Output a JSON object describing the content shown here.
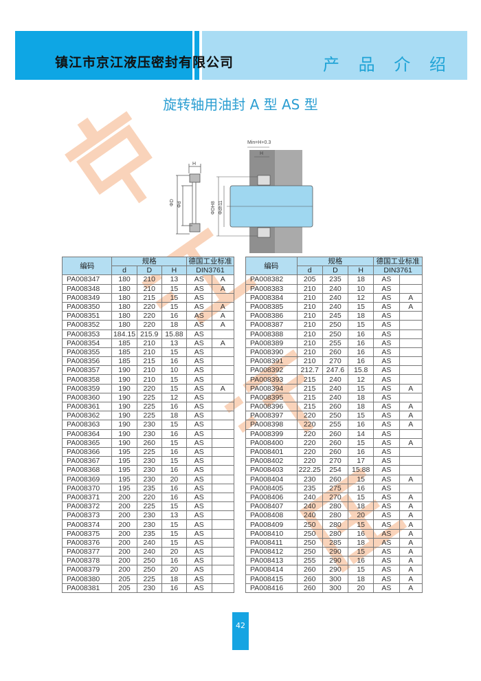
{
  "header": {
    "company": "镇江市京江液压密封有限公司",
    "section": "产 品 介 绍",
    "brand_color": "#0ea6e4"
  },
  "title": "旋转轴用油封 A 型   AS 型",
  "diagram": {
    "min_label": "Min=H+0.3",
    "h_label": "H",
    "D_label": "ΦD",
    "d_label": "Φd",
    "DH8_label": "ΦDH8",
    "dh11_label": "Φdh11"
  },
  "watermark": [
    "京",
    "江",
    "液",
    "压"
  ],
  "table": {
    "headers": {
      "code": "编码",
      "spec": "规格",
      "d": "d",
      "D": "D",
      "H": "H",
      "standard": "德国工业标准",
      "din": "DIN3761"
    },
    "left": [
      [
        "PA008347",
        "180",
        "210",
        "13",
        "AS",
        "A"
      ],
      [
        "PA008348",
        "180",
        "210",
        "15",
        "AS",
        "A"
      ],
      [
        "PA008349",
        "180",
        "215",
        "15",
        "AS",
        ""
      ],
      [
        "PA008350",
        "180",
        "220",
        "15",
        "AS",
        "A"
      ],
      [
        "PA008351",
        "180",
        "220",
        "16",
        "AS",
        "A"
      ],
      [
        "PA008352",
        "180",
        "220",
        "18",
        "AS",
        "A"
      ],
      [
        "PA008353",
        "184.15",
        "215.9",
        "15.88",
        "AS",
        ""
      ],
      [
        "PA008354",
        "185",
        "210",
        "13",
        "AS",
        "A"
      ],
      [
        "PA008355",
        "185",
        "210",
        "15",
        "AS",
        ""
      ],
      [
        "PA008356",
        "185",
        "215",
        "16",
        "AS",
        ""
      ],
      [
        "PA008357",
        "190",
        "210",
        "10",
        "AS",
        ""
      ],
      [
        "PA008358",
        "190",
        "210",
        "15",
        "AS",
        ""
      ],
      [
        "PA008359",
        "190",
        "220",
        "15",
        "AS",
        "A"
      ],
      [
        "PA008360",
        "190",
        "225",
        "12",
        "AS",
        ""
      ],
      [
        "PA008361",
        "190",
        "225",
        "16",
        "AS",
        ""
      ],
      [
        "PA008362",
        "190",
        "225",
        "18",
        "AS",
        ""
      ],
      [
        "PA008363",
        "190",
        "230",
        "15",
        "AS",
        ""
      ],
      [
        "PA008364",
        "190",
        "230",
        "16",
        "AS",
        ""
      ],
      [
        "PA008365",
        "190",
        "260",
        "15",
        "AS",
        ""
      ],
      [
        "PA008366",
        "195",
        "225",
        "16",
        "AS",
        ""
      ],
      [
        "PA008367",
        "195",
        "230",
        "15",
        "AS",
        ""
      ],
      [
        "PA008368",
        "195",
        "230",
        "16",
        "AS",
        ""
      ],
      [
        "PA008369",
        "195",
        "230",
        "20",
        "AS",
        ""
      ],
      [
        "PA008370",
        "195",
        "235",
        "16",
        "AS",
        ""
      ],
      [
        "PA008371",
        "200",
        "220",
        "16",
        "AS",
        ""
      ],
      [
        "PA008372",
        "200",
        "225",
        "15",
        "AS",
        ""
      ],
      [
        "PA008373",
        "200",
        "230",
        "13",
        "AS",
        ""
      ],
      [
        "PA008374",
        "200",
        "230",
        "15",
        "AS",
        ""
      ],
      [
        "PA008375",
        "200",
        "235",
        "15",
        "AS",
        ""
      ],
      [
        "PA008376",
        "200",
        "240",
        "15",
        "AS",
        ""
      ],
      [
        "PA008377",
        "200",
        "240",
        "20",
        "AS",
        ""
      ],
      [
        "PA008378",
        "200",
        "250",
        "16",
        "AS",
        ""
      ],
      [
        "PA008379",
        "200",
        "250",
        "20",
        "AS",
        ""
      ],
      [
        "PA008380",
        "205",
        "225",
        "18",
        "AS",
        ""
      ],
      [
        "PA008381",
        "205",
        "230",
        "16",
        "AS",
        ""
      ]
    ],
    "right": [
      [
        "PA008382",
        "205",
        "235",
        "18",
        "AS",
        ""
      ],
      [
        "PA008383",
        "210",
        "240",
        "10",
        "AS",
        ""
      ],
      [
        "PA008384",
        "210",
        "240",
        "12",
        "AS",
        "A"
      ],
      [
        "PA008385",
        "210",
        "240",
        "15",
        "AS",
        "A"
      ],
      [
        "PA008386",
        "210",
        "245",
        "18",
        "AS",
        ""
      ],
      [
        "PA008387",
        "210",
        "250",
        "15",
        "AS",
        ""
      ],
      [
        "PA008388",
        "210",
        "250",
        "16",
        "AS",
        ""
      ],
      [
        "PA008389",
        "210",
        "255",
        "16",
        "AS",
        ""
      ],
      [
        "PA008390",
        "210",
        "260",
        "16",
        "AS",
        ""
      ],
      [
        "PA008391",
        "210",
        "270",
        "16",
        "AS",
        ""
      ],
      [
        "PA008392",
        "212.7",
        "247.6",
        "15.8",
        "AS",
        ""
      ],
      [
        "PA008393",
        "215",
        "240",
        "12",
        "AS",
        ""
      ],
      [
        "PA008394",
        "215",
        "240",
        "15",
        "AS",
        "A"
      ],
      [
        "PA008395",
        "215",
        "240",
        "18",
        "AS",
        ""
      ],
      [
        "PA008396",
        "215",
        "260",
        "18",
        "AS",
        "A"
      ],
      [
        "PA008397",
        "220",
        "250",
        "15",
        "AS",
        "A"
      ],
      [
        "PA008398",
        "220",
        "255",
        "16",
        "AS",
        "A"
      ],
      [
        "PA008399",
        "220",
        "260",
        "14",
        "AS",
        ""
      ],
      [
        "PA008400",
        "220",
        "260",
        "15",
        "AS",
        "A"
      ],
      [
        "PA008401",
        "220",
        "260",
        "16",
        "AS",
        ""
      ],
      [
        "PA008402",
        "220",
        "270",
        "17",
        "AS",
        ""
      ],
      [
        "PA008403",
        "222.25",
        "254",
        "15.88",
        "AS",
        ""
      ],
      [
        "PA008404",
        "230",
        "260",
        "15",
        "AS",
        "A"
      ],
      [
        "PA008405",
        "235",
        "275",
        "16",
        "AS",
        ""
      ],
      [
        "PA008406",
        "240",
        "270",
        "15",
        "AS",
        "A"
      ],
      [
        "PA008407",
        "240",
        "280",
        "18",
        "AS",
        "A"
      ],
      [
        "PA008408",
        "240",
        "280",
        "20",
        "AS",
        "A"
      ],
      [
        "PA008409",
        "250",
        "280",
        "15",
        "AS",
        "A"
      ],
      [
        "PA008410",
        "250",
        "280",
        "16",
        "AS",
        "A"
      ],
      [
        "PA008411",
        "250",
        "285",
        "18",
        "AS",
        "A"
      ],
      [
        "PA008412",
        "250",
        "290",
        "15",
        "AS",
        "A"
      ],
      [
        "PA008413",
        "255",
        "290",
        "16",
        "AS",
        "A"
      ],
      [
        "PA008414",
        "260",
        "290",
        "15",
        "AS",
        "A"
      ],
      [
        "PA008415",
        "260",
        "300",
        "18",
        "AS",
        "A"
      ],
      [
        "PA008416",
        "260",
        "300",
        "20",
        "AS",
        "A"
      ]
    ]
  },
  "page_number": "42"
}
